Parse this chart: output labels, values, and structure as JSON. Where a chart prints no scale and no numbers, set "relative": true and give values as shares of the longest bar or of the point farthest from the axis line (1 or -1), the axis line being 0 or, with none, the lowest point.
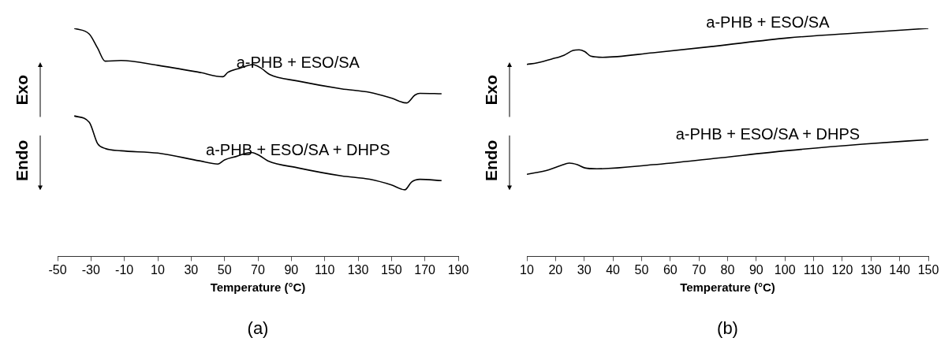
{
  "chart_data": [
    {
      "type": "line",
      "title": "(a)",
      "xlabel": "Temperature (°C)",
      "annotations": [
        "Exo",
        "Endo"
      ],
      "relative": true,
      "marker": "none",
      "line_style": "solid",
      "xlim": [
        -50,
        190
      ],
      "xticks": [
        -50,
        -30,
        -10,
        10,
        30,
        50,
        70,
        90,
        110,
        130,
        150,
        170,
        190
      ],
      "series": [
        {
          "name": "a-PHB + ESO/SA",
          "color": "#000000",
          "x": [
            -40,
            -31,
            -26,
            -21.5,
            -12,
            10,
            35,
            49,
            52,
            59,
            67,
            72,
            77,
            94,
            120,
            137,
            150,
            159,
            164,
            167,
            180
          ],
          "values": [
            1,
            0.975,
            0.913,
            0.856,
            0.859,
            0.838,
            0.807,
            0.788,
            0.807,
            0.825,
            0.841,
            0.825,
            0.798,
            0.769,
            0.735,
            0.719,
            0.694,
            0.673,
            0.707,
            0.715,
            0.713
          ]
        },
        {
          "name": "a-PHB + ESO/SA + DHPS",
          "color": "#000000",
          "x": [
            -40,
            -31,
            -26,
            -21.5,
            -12,
            10,
            35,
            46,
            50,
            57,
            66,
            71,
            76,
            94,
            120,
            137,
            150,
            158,
            162,
            167,
            180
          ],
          "values": [
            0.616,
            0.588,
            0.494,
            0.473,
            0.463,
            0.453,
            0.419,
            0.405,
            0.423,
            0.438,
            0.456,
            0.442,
            0.419,
            0.388,
            0.353,
            0.338,
            0.313,
            0.292,
            0.326,
            0.338,
            0.332
          ]
        }
      ]
    },
    {
      "type": "line",
      "title": "(b)",
      "xlabel": "Temperature (°C)",
      "annotations": [
        "Exo",
        "Endo"
      ],
      "relative": true,
      "marker": "none",
      "line_style": "solid",
      "xlim": [
        10,
        150
      ],
      "xticks": [
        10,
        20,
        30,
        40,
        50,
        60,
        70,
        80,
        90,
        100,
        110,
        120,
        130,
        140,
        150
      ],
      "series": [
        {
          "name": "a-PHB + ESO/SA",
          "color": "#000000",
          "x": [
            10,
            13.6,
            18.8,
            22.9,
            26.1,
            28.2,
            30.2,
            32.3,
            36.5,
            54,
            75,
            101,
            127,
            150
          ],
          "values": [
            0.842,
            0.849,
            0.866,
            0.882,
            0.903,
            0.906,
            0.898,
            0.878,
            0.873,
            0.893,
            0.921,
            0.958,
            0.981,
            1
          ]
        },
        {
          "name": "a-PHB + ESO/SA + DHPS",
          "color": "#000000",
          "x": [
            10,
            17.7,
            21.9,
            24.8,
            27.6,
            30.2,
            34.4,
            54,
            75,
            101,
            127,
            150
          ],
          "values": [
            0.36,
            0.38,
            0.399,
            0.409,
            0.402,
            0.388,
            0.384,
            0.402,
            0.429,
            0.464,
            0.492,
            0.512
          ]
        }
      ]
    }
  ]
}
